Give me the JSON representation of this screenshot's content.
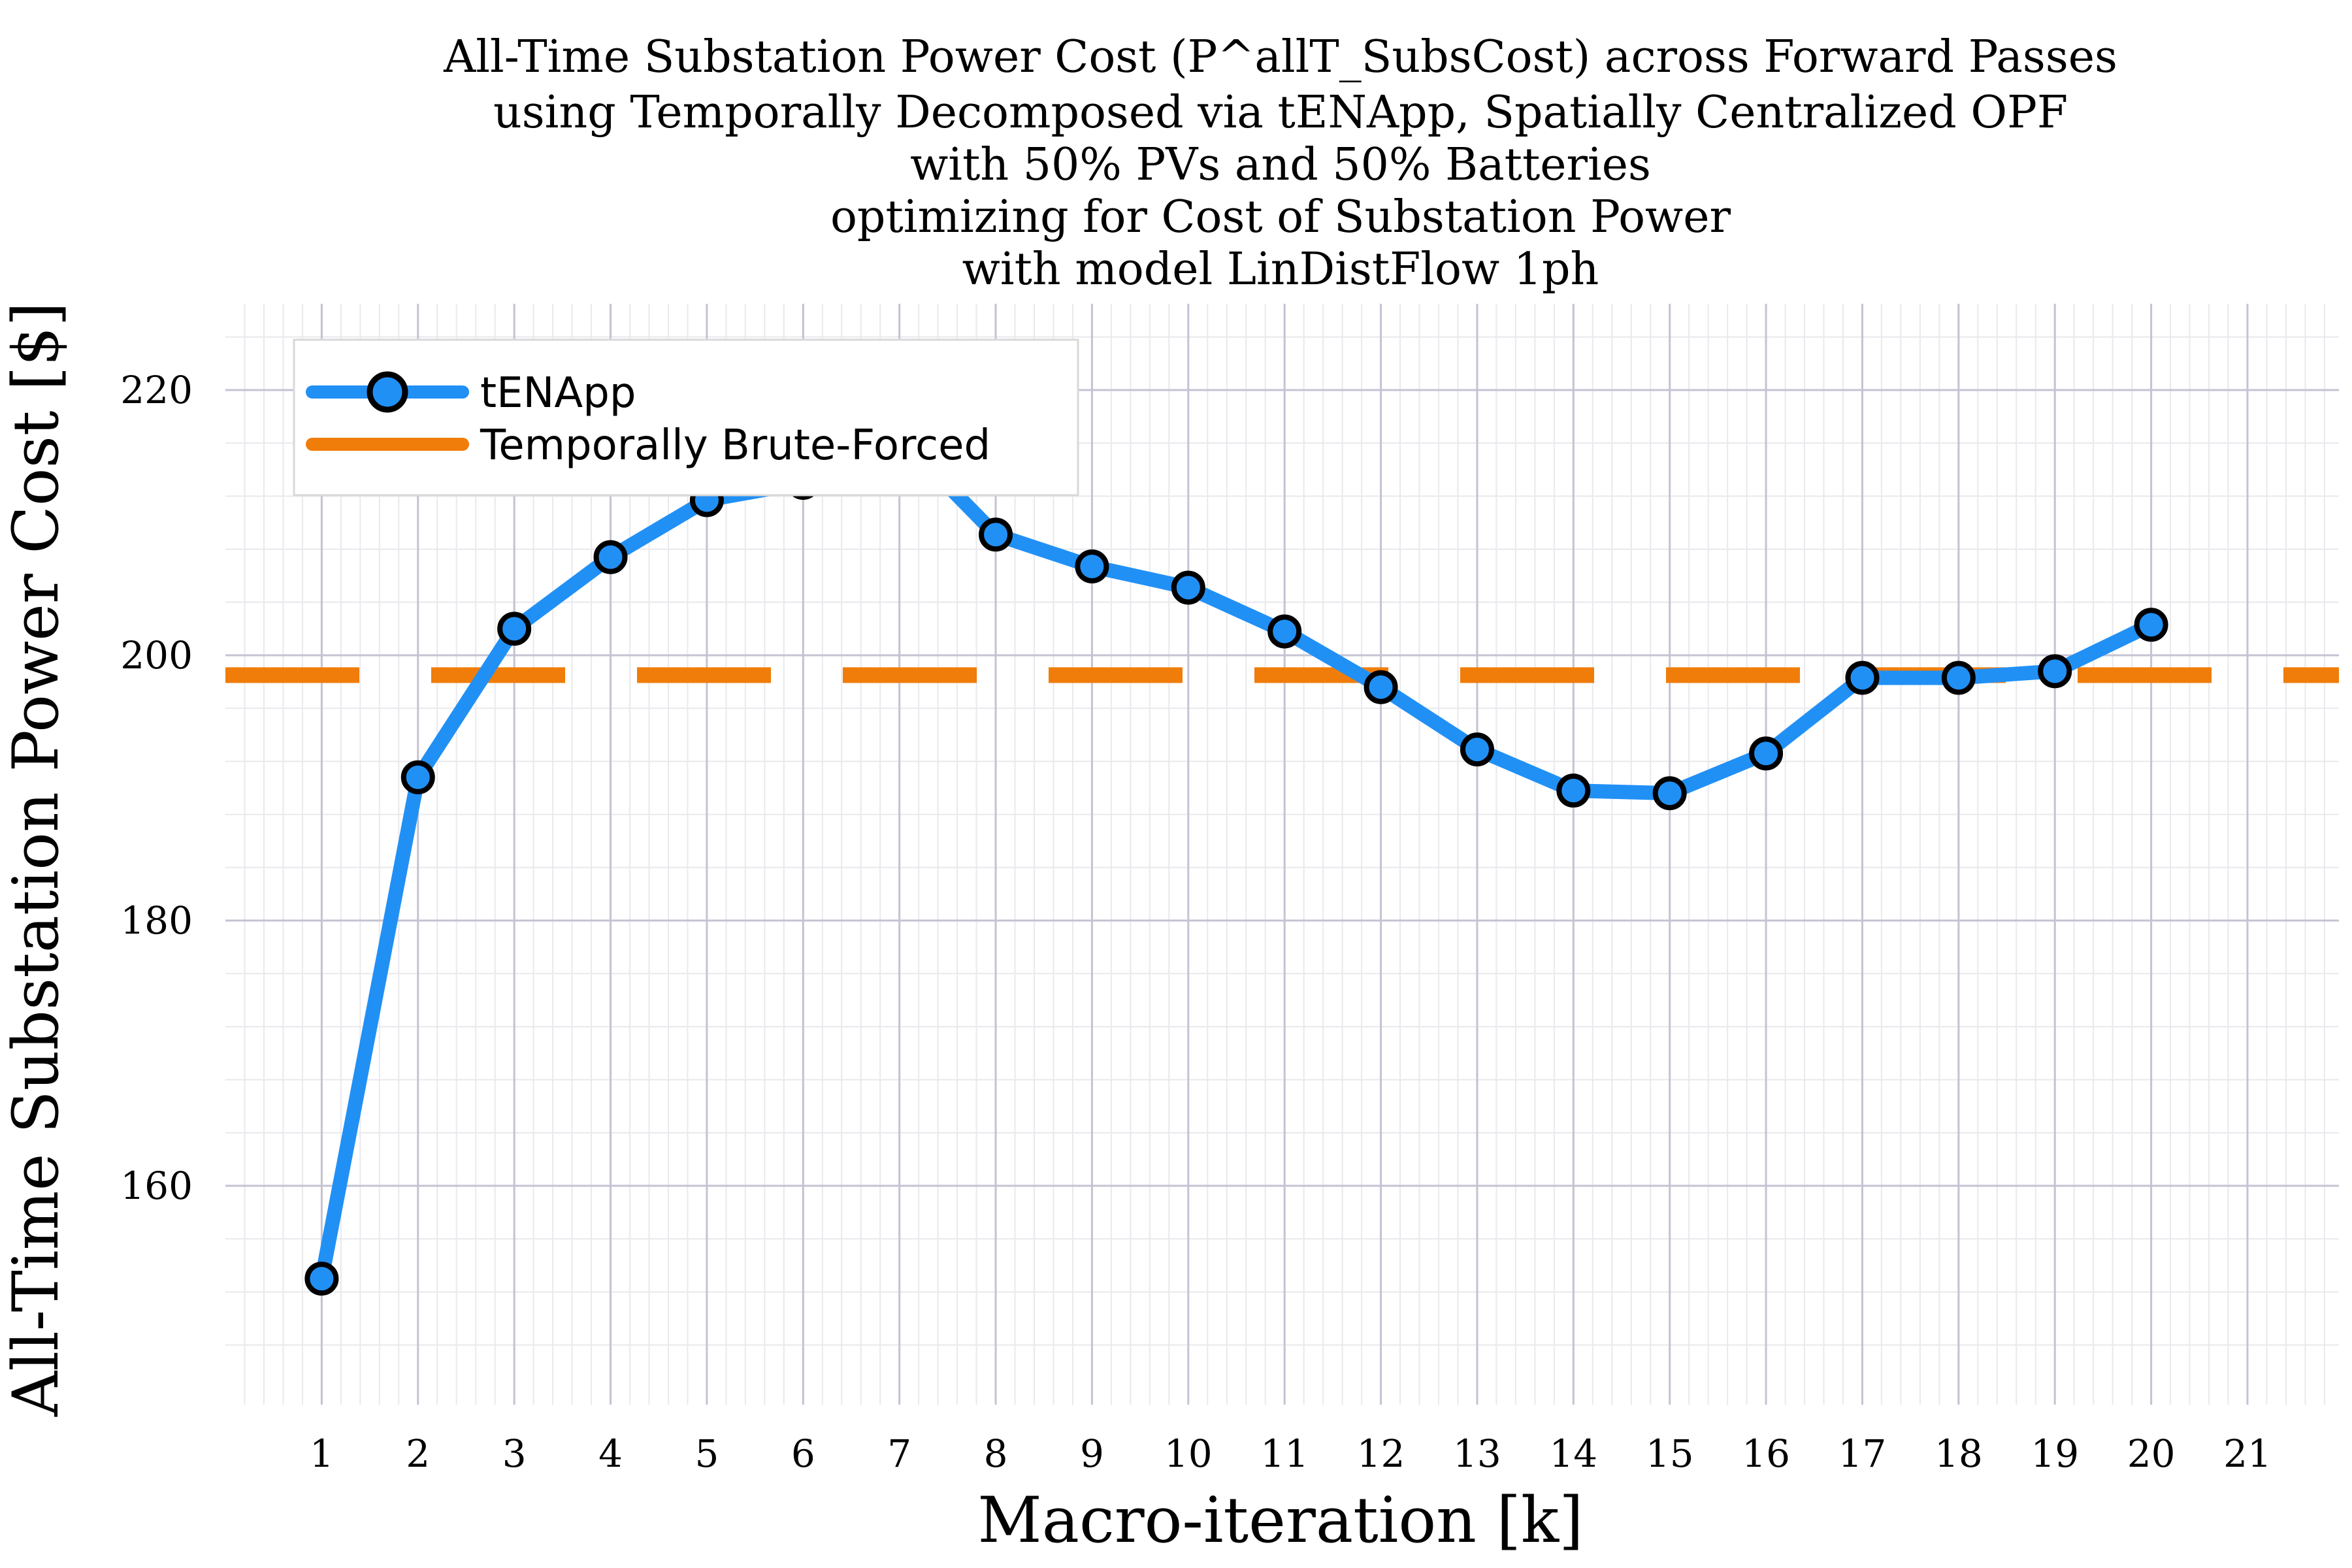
{
  "chart_data": {
    "type": "line",
    "title_lines": [
      "All-Time Substation Power Cost (P^allT_SubsCost) across Forward Passes",
      "using Temporally Decomposed via tENApp, Spatially Centralized OPF",
      "with 50% PVs and 50% Batteries",
      "optimizing for Cost of Substation Power",
      "with model LinDistFlow 1ph"
    ],
    "xlabel": "Macro-iteration [k]",
    "ylabel": "All-Time Substation Power Cost [$]",
    "xlim": [
      0,
      21.95
    ],
    "ylim": [
      143.5,
      226.5
    ],
    "x_ticks": [
      1,
      2,
      3,
      4,
      5,
      6,
      7,
      8,
      9,
      10,
      11,
      12,
      13,
      14,
      15,
      16,
      17,
      18,
      19,
      20,
      21
    ],
    "y_ticks": [
      160,
      180,
      200,
      220
    ],
    "grid": true,
    "legend_position": "top-left",
    "series": [
      {
        "name": "tENApp",
        "style": "line-with-markers",
        "color": "#2190f5",
        "x": [
          1,
          2,
          3,
          4,
          5,
          6,
          7,
          8,
          9,
          10,
          11,
          12,
          13,
          14,
          15,
          16,
          17,
          18,
          19,
          20
        ],
        "values": [
          153.0,
          190.8,
          202.0,
          207.4,
          211.7,
          213.0,
          216.5,
          209.1,
          206.7,
          205.1,
          201.8,
          197.6,
          192.9,
          189.8,
          189.6,
          192.6,
          198.3,
          198.3,
          198.8,
          202.3
        ]
      },
      {
        "name": "Temporally Brute-Forced",
        "style": "dashed-horizontal",
        "color": "#f07d0a",
        "value": 198.5
      }
    ]
  }
}
